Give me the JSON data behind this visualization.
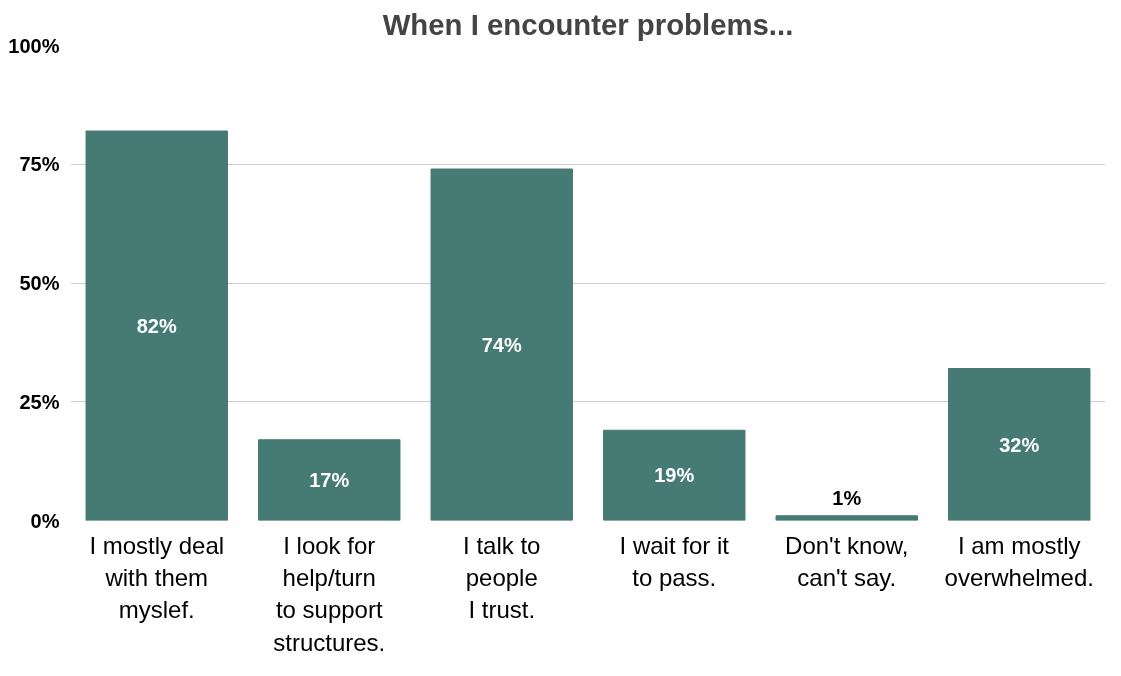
{
  "chart_data": {
    "type": "bar",
    "title": "When I encounter problems...",
    "categories": [
      "I mostly deal\nwith them\nmyslef.",
      "I look for\nhelp/turn\nto support\nstructures.",
      "I talk to\npeople\nI trust.",
      "I wait for it\nto pass.",
      "Don't know,\ncan't say.",
      "I am mostly\noverwhelmed."
    ],
    "values": [
      82,
      17,
      74,
      19,
      1,
      32
    ],
    "color": "#467a75",
    "ylim": [
      0,
      100
    ],
    "yticks": [
      {
        "value": 0,
        "label": "0%"
      },
      {
        "value": 25,
        "label": "25%"
      },
      {
        "value": 50,
        "label": "50%"
      },
      {
        "value": 75,
        "label": "75%"
      },
      {
        "value": 100,
        "label": "100%"
      }
    ],
    "grid": "y",
    "value_labels": [
      "82%",
      "17%",
      "74%",
      "19%",
      "1%",
      "32%"
    ]
  }
}
